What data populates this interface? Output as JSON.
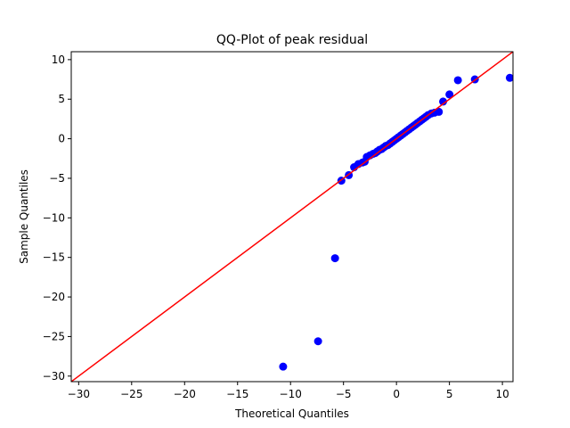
{
  "chart_data": {
    "type": "scatter",
    "title": "QQ-Plot of peak residual",
    "xlabel": "Theoretical Quantiles",
    "ylabel": "Sample Quantiles",
    "xlim": [
      -30.7,
      11.0
    ],
    "ylim": [
      -30.7,
      11.0
    ],
    "xticks": [
      -30,
      -25,
      -20,
      -15,
      -10,
      -5,
      0,
      5,
      10
    ],
    "yticks": [
      -30,
      -25,
      -20,
      -15,
      -10,
      -5,
      0,
      5,
      10
    ],
    "grid": false,
    "point_color": "#0000ff",
    "line_color": "#ff0000",
    "reference_line": {
      "slope": 1,
      "intercept": 0
    },
    "points": [
      [
        -10.7,
        -28.8
      ],
      [
        -7.4,
        -25.6
      ],
      [
        -5.8,
        -15.1
      ],
      [
        -5.2,
        -5.3
      ],
      [
        -4.5,
        -4.6
      ],
      [
        -4.0,
        -3.6
      ],
      [
        -3.6,
        -3.2
      ],
      [
        -3.2,
        -3.0
      ],
      [
        -3.0,
        -2.9
      ],
      [
        -2.8,
        -2.3
      ],
      [
        -2.5,
        -2.1
      ],
      [
        -2.2,
        -1.9
      ],
      [
        -2.0,
        -1.8
      ],
      [
        -1.8,
        -1.6
      ],
      [
        -1.6,
        -1.4
      ],
      [
        -1.4,
        -1.3
      ],
      [
        -1.2,
        -1.1
      ],
      [
        -1.0,
        -0.9
      ],
      [
        -0.8,
        -0.8
      ],
      [
        -0.6,
        -0.6
      ],
      [
        -0.4,
        -0.4
      ],
      [
        -0.2,
        -0.2
      ],
      [
        0.0,
        0.0
      ],
      [
        0.2,
        0.2
      ],
      [
        0.4,
        0.4
      ],
      [
        0.6,
        0.6
      ],
      [
        0.8,
        0.8
      ],
      [
        1.0,
        1.0
      ],
      [
        1.2,
        1.2
      ],
      [
        1.4,
        1.4
      ],
      [
        1.6,
        1.6
      ],
      [
        1.8,
        1.8
      ],
      [
        2.0,
        2.0
      ],
      [
        2.2,
        2.2
      ],
      [
        2.4,
        2.4
      ],
      [
        2.6,
        2.6
      ],
      [
        2.8,
        2.8
      ],
      [
        3.0,
        3.0
      ],
      [
        3.3,
        3.2
      ],
      [
        3.6,
        3.3
      ],
      [
        4.0,
        3.4
      ],
      [
        4.4,
        4.7
      ],
      [
        5.0,
        5.6
      ],
      [
        5.8,
        7.4
      ],
      [
        7.4,
        7.5
      ],
      [
        10.7,
        7.7
      ]
    ]
  }
}
